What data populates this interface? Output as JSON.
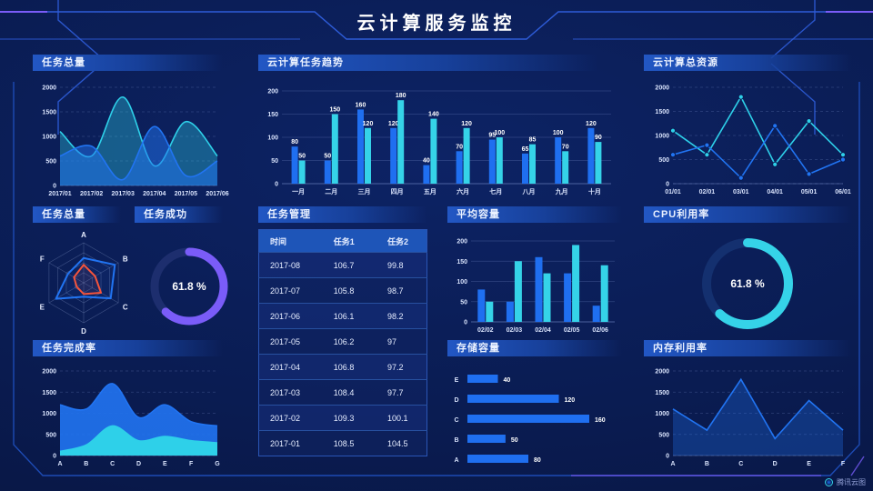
{
  "header": {
    "title": "云计算服务监控"
  },
  "brand": {
    "label": "腾讯云图"
  },
  "colors": {
    "cyan": "#2ed0e9",
    "blue": "#2174f2",
    "barblue": "#1f6ff0",
    "barcyan": "#35d3e8",
    "purple": "#7a5cf8",
    "red": "#f4543c",
    "track_purple": "#1d2e6e",
    "track_cyan": "#14306f"
  },
  "panels": {
    "task_total_area": {
      "title": "任务总量"
    },
    "task_trend": {
      "title": "云计算任务趋势"
    },
    "total_resource": {
      "title": "云计算总资源"
    },
    "task_radar": {
      "title": "任务总量"
    },
    "task_success": {
      "title": "任务成功"
    },
    "task_table": {
      "title": "任务管理",
      "columns": [
        "时间",
        "任务1",
        "任务2"
      ],
      "rows": [
        [
          "2017-08",
          "106.7",
          "99.8"
        ],
        [
          "2017-07",
          "105.8",
          "98.7"
        ],
        [
          "2017-06",
          "106.1",
          "98.2"
        ],
        [
          "2017-05",
          "106.2",
          "97"
        ],
        [
          "2017-04",
          "106.8",
          "97.2"
        ],
        [
          "2017-03",
          "108.4",
          "97.7"
        ],
        [
          "2017-02",
          "109.3",
          "100.1"
        ],
        [
          "2017-01",
          "108.5",
          "104.5"
        ]
      ]
    },
    "avg_capacity": {
      "title": "平均容量"
    },
    "cpu_util": {
      "title": "CPU利用率"
    },
    "completion": {
      "title": "任务完成率"
    },
    "storage": {
      "title": "存储容量"
    },
    "memory_util": {
      "title": "内存利用率"
    }
  },
  "chart_data": [
    {
      "id": "taskTotalArea",
      "type": "area",
      "title": "任务总量",
      "smooth": true,
      "categories": [
        "2017/01",
        "2017/02",
        "2017/03",
        "2017/04",
        "2017/05",
        "2017/06"
      ],
      "series": [
        {
          "name": "series-cyan",
          "color": "cyan",
          "values": [
            1100,
            600,
            1800,
            400,
            1300,
            600
          ],
          "fillOpacity": 0.35
        },
        {
          "name": "series-blue",
          "color": "blue",
          "values": [
            600,
            800,
            120,
            1200,
            200,
            500
          ],
          "fillOpacity": 0.5
        }
      ],
      "ylim": [
        0,
        2000
      ],
      "yticks": [
        0,
        500,
        1000,
        1500,
        2000
      ],
      "grid": "dashed"
    },
    {
      "id": "taskTrend",
      "type": "bar",
      "title": "云计算任务趋势",
      "categories": [
        "一月",
        "二月",
        "三月",
        "四月",
        "五月",
        "六月",
        "七月",
        "八月",
        "九月",
        "十月"
      ],
      "series": [
        {
          "name": "任务1",
          "color": "barblue",
          "values": [
            80,
            50,
            160,
            120,
            40,
            70,
            95,
            65,
            100,
            120
          ]
        },
        {
          "name": "任务2",
          "color": "barcyan",
          "values": [
            50,
            150,
            120,
            180,
            140,
            120,
            100,
            85,
            70,
            90
          ]
        }
      ],
      "ylim": [
        0,
        200
      ],
      "yticks": [
        0,
        50,
        100,
        150,
        200
      ],
      "grid": "solid",
      "value_labels": true
    },
    {
      "id": "totalResource",
      "type": "line",
      "title": "云计算总资源",
      "smooth": false,
      "categories": [
        "01/01",
        "02/01",
        "03/01",
        "04/01",
        "05/01",
        "06/01"
      ],
      "series": [
        {
          "name": "series-cyan",
          "color": "cyan",
          "values": [
            1100,
            600,
            1800,
            400,
            1300,
            600
          ],
          "fill": false,
          "markers": true
        },
        {
          "name": "series-blue",
          "color": "blue",
          "values": [
            600,
            800,
            120,
            1200,
            200,
            500
          ],
          "fill": false,
          "markers": true
        }
      ],
      "ylim": [
        0,
        2000
      ],
      "yticks": [
        0,
        500,
        1000,
        1500,
        2000
      ],
      "grid": "dashed"
    },
    {
      "id": "taskRadar",
      "type": "radar",
      "title": "任务总量",
      "max": 1,
      "axes": [
        "A",
        "B",
        "C",
        "D",
        "E",
        "F"
      ],
      "series": [
        {
          "name": "radar-blue",
          "color": "blue",
          "values": [
            0.62,
            0.9,
            0.78,
            0.35,
            0.8,
            0.45
          ]
        },
        {
          "name": "radar-red",
          "color": "red",
          "values": [
            0.45,
            0.33,
            0.5,
            0.28,
            0.2,
            0.28
          ]
        }
      ]
    },
    {
      "id": "taskSuccess",
      "type": "donut",
      "title": "任务成功",
      "value": 61.8,
      "label": "61.8 %",
      "color": "purple",
      "track": "track_purple"
    },
    {
      "id": "cpuUtil",
      "type": "donut",
      "title": "CPU利用率",
      "value": 61.8,
      "label": "61.8 %",
      "color": "barcyan",
      "track": "track_cyan"
    },
    {
      "id": "avgCapacity",
      "type": "bar",
      "title": "平均容量",
      "categories": [
        "02/02",
        "02/03",
        "02/04",
        "02/05",
        "02/06"
      ],
      "series": [
        {
          "name": "series-blue",
          "color": "barblue",
          "values": [
            80,
            50,
            160,
            120,
            40
          ]
        },
        {
          "name": "series-cyan",
          "color": "barcyan",
          "values": [
            50,
            150,
            120,
            190,
            140
          ]
        }
      ],
      "ylim": [
        0,
        200
      ],
      "yticks": [
        0,
        50,
        100,
        150,
        200
      ],
      "grid": "solid",
      "value_labels": false
    },
    {
      "id": "completionRate",
      "type": "area",
      "title": "任务完成率",
      "smooth": true,
      "categories": [
        "A",
        "B",
        "C",
        "D",
        "E",
        "F",
        "G"
      ],
      "series": [
        {
          "name": "upper-blue",
          "color": "blue",
          "values": [
            1200,
            1100,
            1700,
            900,
            1200,
            800,
            700
          ],
          "fillOpacity": 0.9
        },
        {
          "name": "lower-cyan",
          "color": "cyan",
          "values": [
            100,
            250,
            700,
            350,
            450,
            350,
            300
          ],
          "fillOpacity": 1
        }
      ],
      "ylim": [
        0,
        2000
      ],
      "yticks": [
        0,
        500,
        1000,
        1500,
        2000
      ],
      "grid": "dashed"
    },
    {
      "id": "storageCap",
      "type": "hbar",
      "title": "存储容量",
      "xmax": 160,
      "rows": [
        {
          "label": "E",
          "value": 40
        },
        {
          "label": "D",
          "value": 120
        },
        {
          "label": "C",
          "value": 160
        },
        {
          "label": "B",
          "value": 50
        },
        {
          "label": "A",
          "value": 80
        }
      ]
    },
    {
      "id": "memoryUtil",
      "type": "area",
      "title": "内存利用率",
      "smooth": false,
      "categories": [
        "A",
        "B",
        "C",
        "D",
        "E",
        "F"
      ],
      "series": [
        {
          "name": "series-blue",
          "color": "blue",
          "values": [
            1100,
            600,
            1800,
            400,
            1300,
            600
          ],
          "fillOpacity": 0.3
        }
      ],
      "ylim": [
        0,
        2000
      ],
      "yticks": [
        0,
        500,
        1000,
        1500,
        2000
      ],
      "grid": "dashed"
    }
  ]
}
